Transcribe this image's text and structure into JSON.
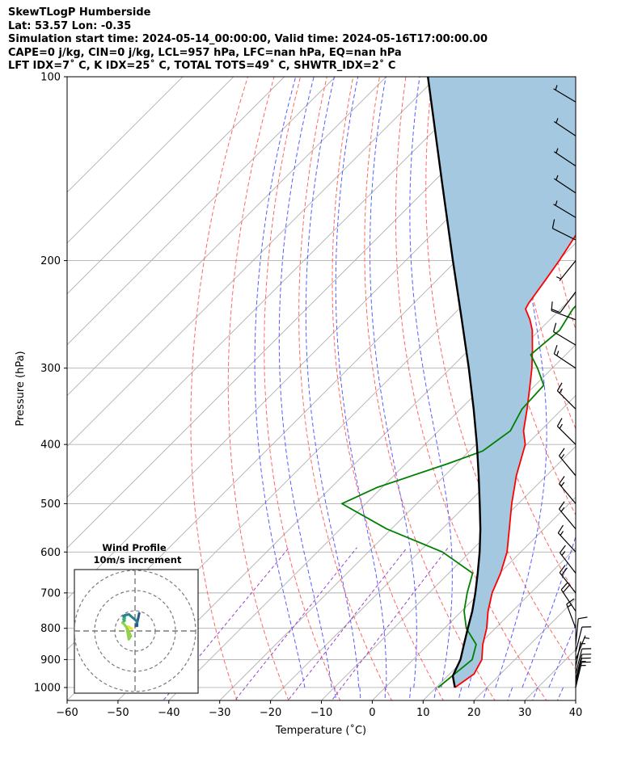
{
  "header": {
    "lines": [
      "SkewTLogP Humberside",
      "Lat: 53.57   Lon: -0.35",
      "Simulation start time: 2024-05-14_00:00:00, Valid time: 2024-05-16T17:00:00.00",
      "CAPE=0 j/kg, CIN=0 j/kg, LCL=957 hPa, LFC=nan hPa, EQ=nan hPa",
      "LFT IDX=7˚ C, K IDX=25˚ C, TOTAL TOTS=49˚ C, SHWTR_IDX=2˚ C"
    ]
  },
  "chart_data": {
    "type": "line",
    "subtype": "skew-T log-P sounding",
    "xlabel": "Temperature (˚C)",
    "ylabel": "Pressure (hPa)",
    "xlim": [
      -60,
      40
    ],
    "ylim": [
      1050,
      100
    ],
    "y_scale": "log",
    "grid": true,
    "x_ticks": [
      -60,
      -50,
      -40,
      -30,
      -20,
      -10,
      0,
      10,
      20,
      30,
      40
    ],
    "x_tick_labels": [
      "−60",
      "−50",
      "−40",
      "−30",
      "−20",
      "−10",
      "0",
      "10",
      "20",
      "30",
      "40"
    ],
    "y_ticks": [
      1000,
      900,
      800,
      700,
      600,
      500,
      400,
      300,
      200,
      100
    ],
    "y_tick_labels": [
      "1000",
      "900",
      "800",
      "700",
      "600",
      "500",
      "400",
      "300",
      "200",
      "100"
    ],
    "series": [
      {
        "role": "temperature",
        "color": "#ff0000",
        "points": [
          [
            1000,
            13.7
          ],
          [
            950,
            14.8
          ],
          [
            900,
            13.5
          ],
          [
            850,
            10.7
          ],
          [
            800,
            8.3
          ],
          [
            750,
            5.2
          ],
          [
            700,
            2.4
          ],
          [
            650,
            0.2
          ],
          [
            600,
            -2.7
          ],
          [
            550,
            -6.8
          ],
          [
            500,
            -11.3
          ],
          [
            450,
            -15.9
          ],
          [
            400,
            -20.3
          ],
          [
            380,
            -23.3
          ],
          [
            350,
            -26.9
          ],
          [
            320,
            -31.0
          ],
          [
            300,
            -34.0
          ],
          [
            280,
            -37.5
          ],
          [
            260,
            -41.4
          ],
          [
            250,
            -43.9
          ],
          [
            240,
            -46.9
          ],
          [
            235,
            -47.4
          ],
          [
            215,
            -48.7
          ],
          [
            200,
            -49.8
          ],
          [
            180,
            -51.7
          ],
          [
            160,
            -54.0
          ],
          [
            150,
            -55.0
          ],
          [
            140,
            -57.4
          ],
          [
            130,
            -60.0
          ],
          [
            120,
            -63.4
          ],
          [
            110,
            -66.6
          ],
          [
            100,
            -70.1
          ]
        ]
      },
      {
        "role": "dewpoint",
        "color": "#008000",
        "points": [
          [
            1000,
            10.4
          ],
          [
            950,
            11.0
          ],
          [
            900,
            11.6
          ],
          [
            850,
            9.4
          ],
          [
            800,
            4.3
          ],
          [
            750,
            0.5
          ],
          [
            700,
            -2.5
          ],
          [
            650,
            -5.3
          ],
          [
            600,
            -15.4
          ],
          [
            550,
            -30.9
          ],
          [
            500,
            -44.7
          ],
          [
            470,
            -40.9
          ],
          [
            430,
            -31.7
          ],
          [
            410,
            -27.4
          ],
          [
            400,
            -26.9
          ],
          [
            380,
            -25.9
          ],
          [
            350,
            -27.9
          ],
          [
            320,
            -28.3
          ],
          [
            300,
            -32.9
          ],
          [
            285,
            -36.9
          ],
          [
            260,
            -36.0
          ],
          [
            240,
            -37.6
          ],
          [
            220,
            -37.7
          ],
          [
            205,
            -37.2
          ],
          [
            190,
            -39.0
          ],
          [
            180,
            -42.2
          ],
          [
            170,
            -46.1
          ],
          [
            160,
            -49.5
          ],
          [
            150,
            -51.9
          ],
          [
            140,
            -52.8
          ],
          [
            130,
            -53.5
          ],
          [
            120,
            -54.5
          ],
          [
            110,
            -55.5
          ],
          [
            100,
            -56.5
          ]
        ]
      },
      {
        "role": "parcel",
        "color": "#000000",
        "points": [
          [
            1000,
            13.7
          ],
          [
            957,
            11.0
          ],
          [
            900,
            9.3
          ],
          [
            850,
            7.0
          ],
          [
            800,
            4.6
          ],
          [
            750,
            2.1
          ],
          [
            700,
            -0.9
          ],
          [
            650,
            -4.3
          ],
          [
            600,
            -8.1
          ],
          [
            550,
            -12.5
          ],
          [
            500,
            -17.6
          ],
          [
            450,
            -23.3
          ],
          [
            400,
            -29.8
          ],
          [
            350,
            -37.4
          ],
          [
            300,
            -46.4
          ],
          [
            250,
            -57.3
          ],
          [
            200,
            -70.7
          ],
          [
            150,
            -87.8
          ],
          [
            100,
            -111.8
          ]
        ]
      }
    ],
    "wind_barbs": {
      "units": "knots",
      "entries": [
        [
          1000,
          4,
          17
        ],
        [
          985,
          4,
          17
        ],
        [
          970,
          3,
          12
        ],
        [
          950,
          2,
          8
        ],
        [
          925,
          1,
          5
        ],
        [
          900,
          2,
          5
        ],
        [
          875,
          2,
          8
        ],
        [
          850,
          1,
          10
        ],
        [
          800,
          -6,
          16
        ],
        [
          750,
          -10,
          15
        ],
        [
          700,
          -11,
          14
        ],
        [
          650,
          -10,
          13
        ],
        [
          600,
          -11,
          12
        ],
        [
          550,
          -10,
          12
        ],
        [
          500,
          -10,
          12
        ],
        [
          450,
          -10,
          12
        ],
        [
          400,
          -11,
          11
        ],
        [
          350,
          -10,
          10
        ],
        [
          300,
          -12,
          8
        ],
        [
          275,
          -10,
          6
        ],
        [
          250,
          -8,
          3
        ],
        [
          225,
          -6,
          -8
        ],
        [
          200,
          -4,
          -5
        ],
        [
          185,
          -8,
          4
        ],
        [
          170,
          -5,
          3
        ],
        [
          155,
          -3,
          2
        ],
        [
          140,
          -6,
          4
        ],
        [
          125,
          -6,
          4
        ],
        [
          110,
          -5,
          3
        ]
      ]
    },
    "inset": {
      "title": "Wind Profile",
      "subtitle": "10m/s increment",
      "rings_ms": [
        10,
        20,
        30
      ],
      "colormap": [
        "#2c5c8a",
        "#2a7e8e",
        "#36b47c",
        "#8fd24a",
        "#e8e52a"
      ]
    },
    "colors": {
      "isotherm": "#b0b0b0",
      "dry_adiabat": "#ff6666",
      "moist_adiabat": "#5a5aff",
      "mixing_ratio": "#9a40c8",
      "cape_shade": "#a4c8e0"
    }
  }
}
